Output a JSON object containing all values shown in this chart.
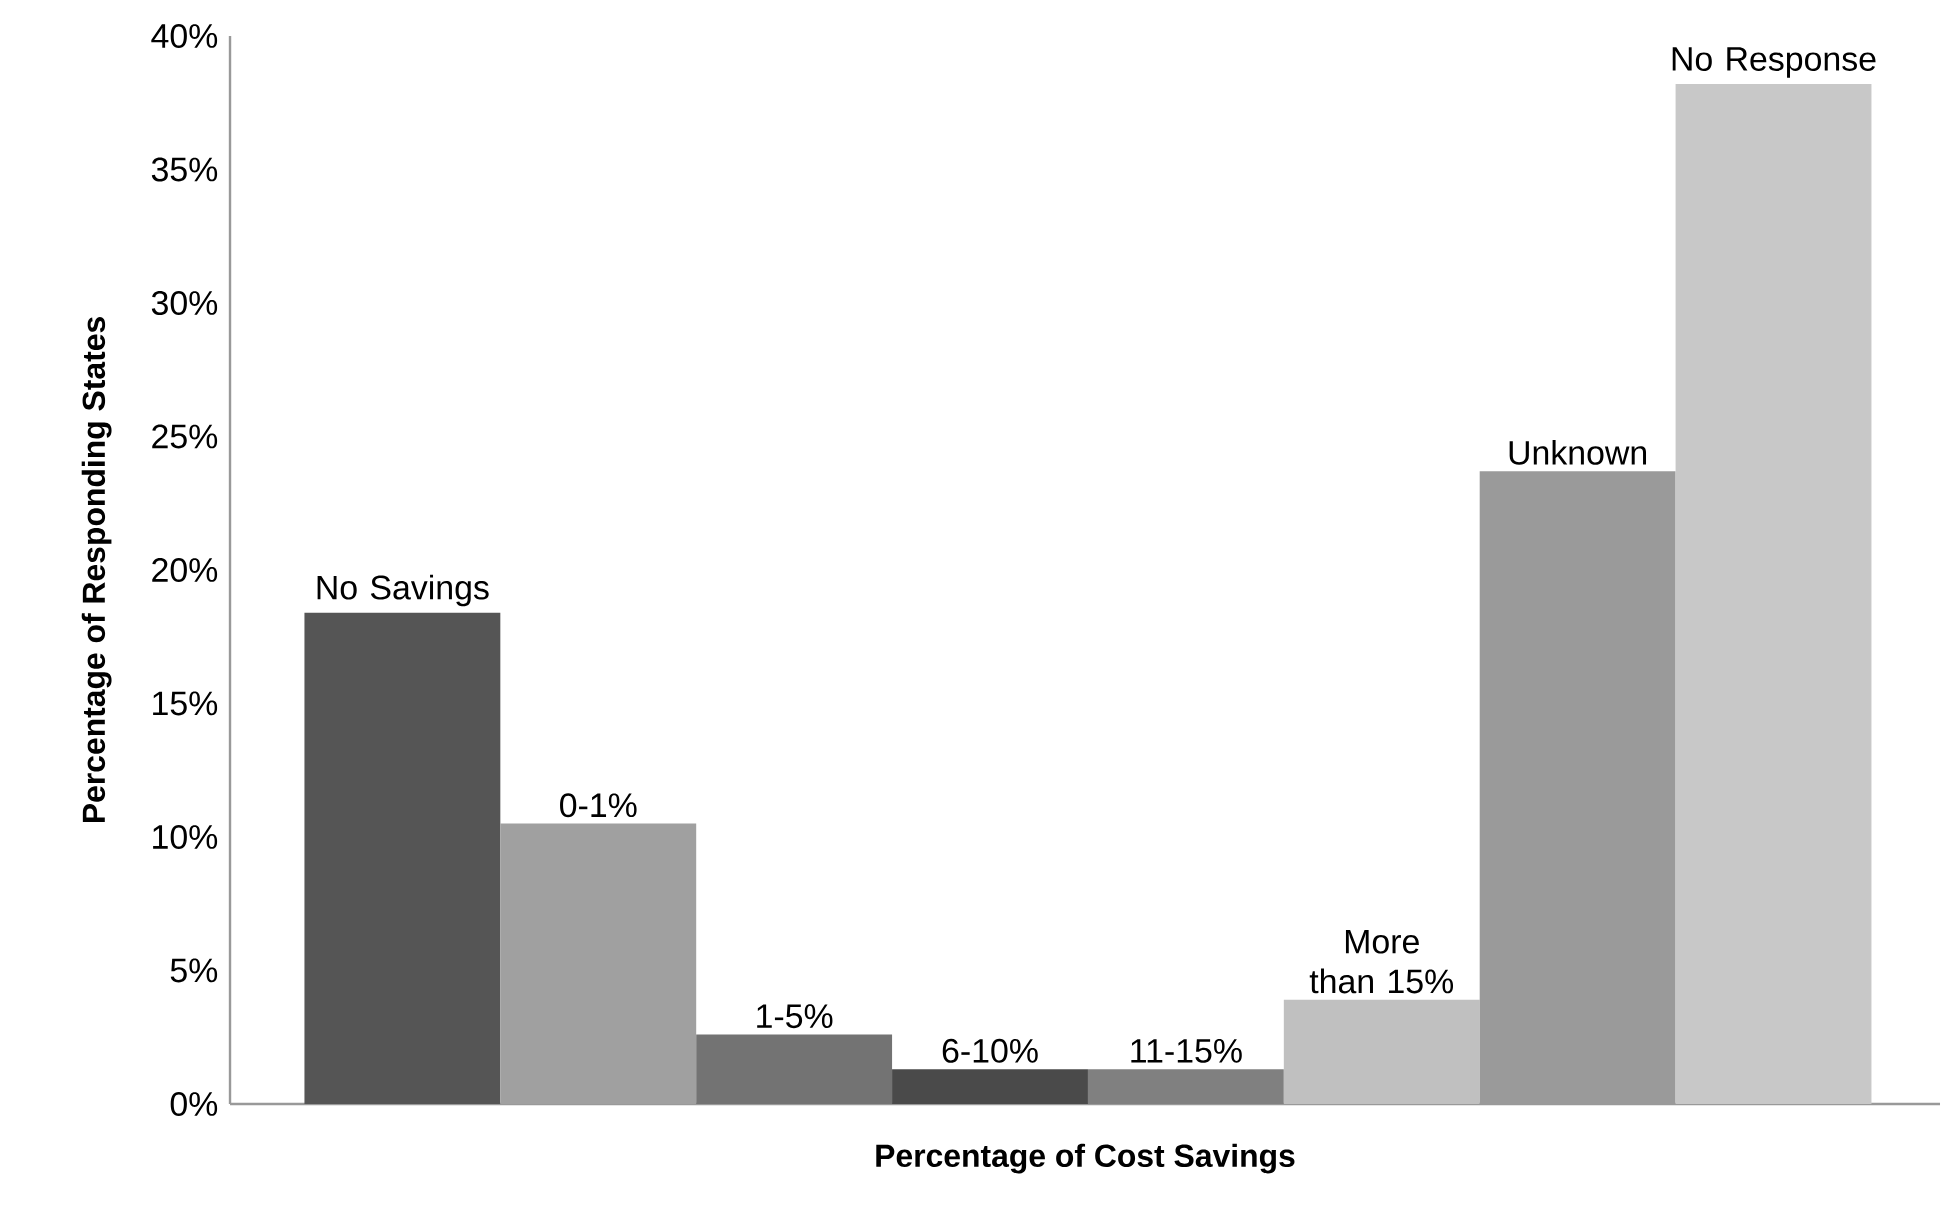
{
  "chart_data": {
    "type": "bar",
    "categories": [
      "No Savings",
      "0-1%",
      "1-5%",
      "6-10%",
      "11-15%",
      "More than 15%",
      "Unknown",
      "No Response"
    ],
    "values": [
      18.4,
      10.5,
      2.6,
      1.3,
      1.3,
      3.9,
      23.7,
      38.2
    ],
    "colors": [
      "#555555",
      "#a0a0a0",
      "#737373",
      "#4a4a4a",
      "#808080",
      "#c0c0c0",
      "#9a9a9a",
      "#c8c8c8"
    ],
    "ylim": [
      0,
      40
    ],
    "yticks": [
      {
        "value": 0,
        "label": "0%"
      },
      {
        "value": 5,
        "label": "5%"
      },
      {
        "value": 10,
        "label": "10%"
      },
      {
        "value": 15,
        "label": "15%"
      },
      {
        "value": 20,
        "label": "20%"
      },
      {
        "value": 25,
        "label": "25%"
      },
      {
        "value": 30,
        "label": "30%"
      },
      {
        "value": 35,
        "label": "35%"
      },
      {
        "value": 40,
        "label": "40%"
      }
    ],
    "xlabel": "Percentage of Cost Savings",
    "ylabel": "Percentage of Responding States"
  }
}
